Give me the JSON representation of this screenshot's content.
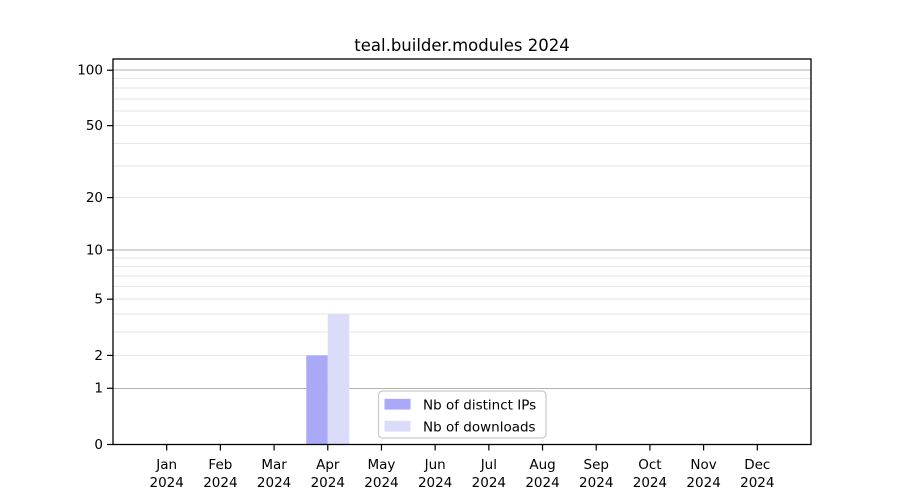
{
  "chart_data": {
    "type": "bar",
    "title": "teal.builder.modules 2024",
    "x_categories": [
      "Jan",
      "Feb",
      "Mar",
      "Apr",
      "May",
      "Jun",
      "Jul",
      "Aug",
      "Sep",
      "Oct",
      "Nov",
      "Dec"
    ],
    "x_year": "2024",
    "series": [
      {
        "name": "Nb of distinct IPs",
        "color": "#a9a9f7",
        "values": [
          0,
          0,
          0,
          2,
          0,
          0,
          0,
          0,
          0,
          0,
          0,
          0
        ]
      },
      {
        "name": "Nb of downloads",
        "color": "#dbdbfa",
        "values": [
          0,
          0,
          0,
          4,
          0,
          0,
          0,
          0,
          0,
          0,
          0,
          0
        ]
      }
    ],
    "y_scale": "log10(value+1)",
    "y_tick_labels": [
      "0",
      "1",
      "2",
      "5",
      "10",
      "20",
      "50",
      "100"
    ],
    "y_major_gridlines": [
      1,
      10,
      100
    ],
    "y_minor_gridlines": [
      2,
      3,
      4,
      5,
      6,
      7,
      8,
      9,
      20,
      30,
      40,
      50,
      60,
      70,
      80,
      90
    ],
    "ylim": [
      0,
      115
    ],
    "grid": true,
    "legend": {
      "position": "lower center",
      "entries": [
        "Nb of distinct IPs",
        "Nb of downloads"
      ]
    },
    "colors": {
      "background": "#ffffff",
      "major_grid": "#b2b2b2",
      "minor_grid": "#e6e6e6",
      "spine": "#000000",
      "text": "#000000",
      "legend_border": "#c9c9c9",
      "legend_background": "#ffffff"
    }
  }
}
